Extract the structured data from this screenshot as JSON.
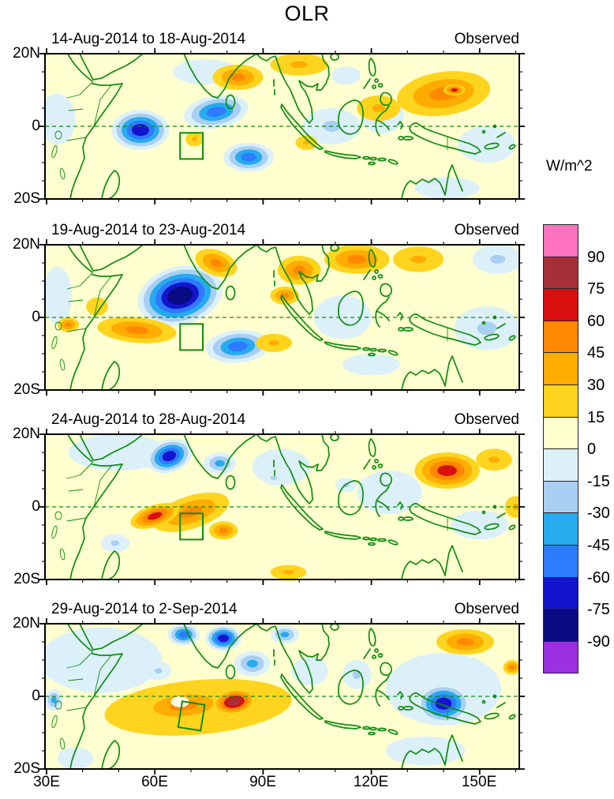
{
  "chart_data": {
    "type": "heatmap",
    "subtype": "filled-contour-anomaly-maps",
    "title": "OLR",
    "colorbar": {
      "unit_label": "W/m^2",
      "tick_labels": [
        "90",
        "75",
        "60",
        "45",
        "30",
        "15",
        "0",
        "-15",
        "-30",
        "-45",
        "-60",
        "-75",
        "-90"
      ],
      "colors_top_to_bottom": [
        "#FF72BE",
        "#A63038",
        "#D90F0F",
        "#FF8800",
        "#FFAC00",
        "#FFD41E",
        "#FFFFCF",
        "#DCF0FA",
        "#A9CFF2",
        "#26ABEE",
        "#2E7BFF",
        "#1414CF",
        "#0A0A82",
        "#9B30E0"
      ]
    },
    "band_colors": {
      "0": "#FFFFCF",
      "15": "#FFD41E",
      "30": "#FFAC00",
      "45": "#FF8800",
      "60": "#D90F0F",
      "75": "#A63038",
      "90": "#FF72BE",
      "-15": "#DCF0FA",
      "-30": "#A9CFF2",
      "-45": "#26ABEE",
      "-60": "#2E7BFF",
      "-75": "#1414CF",
      "-90": "#0A0A82"
    },
    "pale_spot_color": "#FFFCE8",
    "map_colors": {
      "coastline_green": "#0E8C0E",
      "border_black": "#000000"
    },
    "axes": {
      "x_tick_labels": [
        "30E",
        "60E",
        "90E",
        "120E",
        "150E"
      ],
      "x_tick_lons": [
        30,
        60,
        90,
        120,
        150
      ],
      "x_minor_step_deg": 10,
      "y_tick_labels": [
        "20N",
        "0",
        "20S"
      ],
      "y_tick_lats": [
        20,
        0,
        -20
      ],
      "y_minor_step_deg": 5,
      "lon_range": [
        30,
        161
      ],
      "lat_range": [
        -20,
        20
      ]
    },
    "roi_box": {
      "lon_min": 67,
      "lon_max": 73.3,
      "lat_min": -9,
      "lat_max": -1.8
    },
    "anomaly_format": "[lon_deg_E, lat_deg_N, rx_deg, ry_deg, rotation_deg, peak_W_per_m2]",
    "panels": [
      {
        "label": "14-Aug-2014 to 18-Aug-2014",
        "source_label": "Observed",
        "roi_rotation": 0,
        "anomalies": [
          [
            33,
            2,
            5,
            7,
            0,
            -15
          ],
          [
            74,
            15,
            9,
            3.5,
            0,
            -15
          ],
          [
            109,
            0,
            8,
            5,
            0,
            -30
          ],
          [
            123,
            3,
            6,
            5,
            0,
            -30
          ],
          [
            152,
            -5,
            8,
            5,
            0,
            -15
          ],
          [
            141,
            -17,
            9,
            3,
            0,
            -15
          ],
          [
            113,
            14,
            4,
            2.5,
            0,
            -15
          ],
          [
            56,
            -1,
            8,
            5.5,
            0,
            -75
          ],
          [
            77,
            4,
            9,
            4.5,
            -10,
            -60
          ],
          [
            86,
            -8.5,
            7,
            4,
            0,
            -60
          ],
          [
            83,
            13.5,
            7,
            3.5,
            0,
            45
          ],
          [
            100,
            17,
            8,
            3,
            0,
            30
          ],
          [
            140,
            9,
            13,
            6,
            -8,
            45
          ],
          [
            143,
            10,
            3,
            1.5,
            0,
            60
          ],
          [
            122,
            5,
            6,
            3.5,
            0,
            30
          ],
          [
            71,
            -3.5,
            2.5,
            2,
            0,
            30
          ],
          [
            102,
            -4.5,
            3,
            2,
            0,
            30
          ]
        ]
      },
      {
        "label": "19-Aug-2014 to 23-Aug-2014",
        "source_label": "Observed",
        "roi_rotation": 0,
        "anomalies": [
          [
            33,
            6,
            4,
            8,
            0,
            -15
          ],
          [
            155,
            16,
            7,
            4,
            0,
            -30
          ],
          [
            152,
            -3,
            9,
            6,
            0,
            -30
          ],
          [
            112,
            0,
            8,
            6,
            0,
            -15
          ],
          [
            120,
            -13,
            8,
            3,
            0,
            -15
          ],
          [
            67,
            6,
            12,
            8,
            -15,
            -90
          ],
          [
            83,
            -8,
            9,
            4.5,
            -5,
            -60
          ],
          [
            77,
            15,
            6,
            3.5,
            20,
            45
          ],
          [
            96,
            6,
            4,
            2.5,
            0,
            45
          ],
          [
            100,
            13,
            6,
            4,
            0,
            45
          ],
          [
            116,
            16,
            9,
            4,
            0,
            45
          ],
          [
            133,
            16,
            7,
            3.5,
            0,
            30
          ],
          [
            55,
            -3.5,
            11,
            3.5,
            5,
            45
          ],
          [
            93,
            -7,
            5,
            2.5,
            0,
            30
          ],
          [
            36,
            -2,
            3,
            2,
            0,
            45
          ],
          [
            44,
            3,
            3,
            2.5,
            0,
            15
          ]
        ]
      },
      {
        "label": "24-Aug-2014 to 28-Aug-2014",
        "source_label": "Observed",
        "roi_rotation": 0,
        "anomalies": [
          [
            50,
            15,
            14,
            5,
            0,
            -15
          ],
          [
            95,
            11,
            8,
            5,
            0,
            -15
          ],
          [
            125,
            4,
            9,
            6,
            0,
            -15
          ],
          [
            150,
            -5,
            8,
            4,
            0,
            -15
          ],
          [
            49,
            -10,
            4,
            2.5,
            0,
            -30
          ],
          [
            64,
            14,
            6.5,
            4.5,
            -20,
            -75
          ],
          [
            78,
            12,
            4.5,
            3,
            0,
            -45
          ],
          [
            113,
            6,
            3,
            2,
            0,
            -30
          ],
          [
            93,
            8,
            3,
            2,
            0,
            -30
          ],
          [
            74,
            -2.5,
            1.5,
            1,
            0,
            -30
          ],
          [
            70,
            -1.5,
            11,
            4.5,
            -18,
            45
          ],
          [
            60,
            -2.5,
            7,
            3,
            -18,
            60
          ],
          [
            79,
            -6.5,
            4,
            2.5,
            0,
            45
          ],
          [
            141,
            10,
            9,
            5,
            0,
            60
          ],
          [
            154,
            13,
            5,
            3,
            0,
            30
          ],
          [
            97,
            -18,
            5,
            2,
            0,
            30
          ],
          [
            160,
            0,
            3,
            3,
            0,
            30
          ]
        ]
      },
      {
        "label": "29-Aug-2014 to 2-Sep-2014",
        "source_label": "Observed",
        "roi_rotation": 9,
        "anomalies": [
          [
            45,
            10,
            17,
            9,
            0,
            -15
          ],
          [
            140,
            2,
            16,
            10,
            0,
            -15
          ],
          [
            135,
            -15,
            11,
            4,
            0,
            -15
          ],
          [
            38,
            -17,
            5,
            3,
            0,
            -15
          ],
          [
            103,
            7,
            5,
            4,
            0,
            -15
          ],
          [
            61,
            7,
            3.5,
            2.5,
            0,
            -30
          ],
          [
            68,
            17,
            4.5,
            3,
            0,
            -60
          ],
          [
            79,
            16,
            5,
            3.5,
            0,
            -75
          ],
          [
            87,
            9,
            5,
            3.5,
            0,
            -45
          ],
          [
            96,
            17,
            4,
            2.5,
            0,
            -45
          ],
          [
            116,
            6,
            4,
            4,
            0,
            -30
          ],
          [
            140,
            -2,
            7.5,
            5.5,
            0,
            -75
          ],
          [
            32,
            -1,
            2.5,
            3,
            0,
            -45
          ],
          [
            72,
            -3,
            26,
            7.5,
            -5,
            15
          ],
          [
            70,
            -2.5,
            20,
            6,
            -5,
            30
          ],
          [
            68,
            -2.5,
            13,
            4.5,
            -5,
            45
          ],
          [
            82,
            -1.5,
            6,
            3.5,
            -10,
            75
          ],
          [
            67,
            -1.5,
            2.5,
            1.5,
            0,
            0
          ],
          [
            146,
            15,
            8,
            3.5,
            0,
            45
          ],
          [
            159,
            8,
            2.5,
            2,
            0,
            45
          ]
        ]
      }
    ]
  }
}
